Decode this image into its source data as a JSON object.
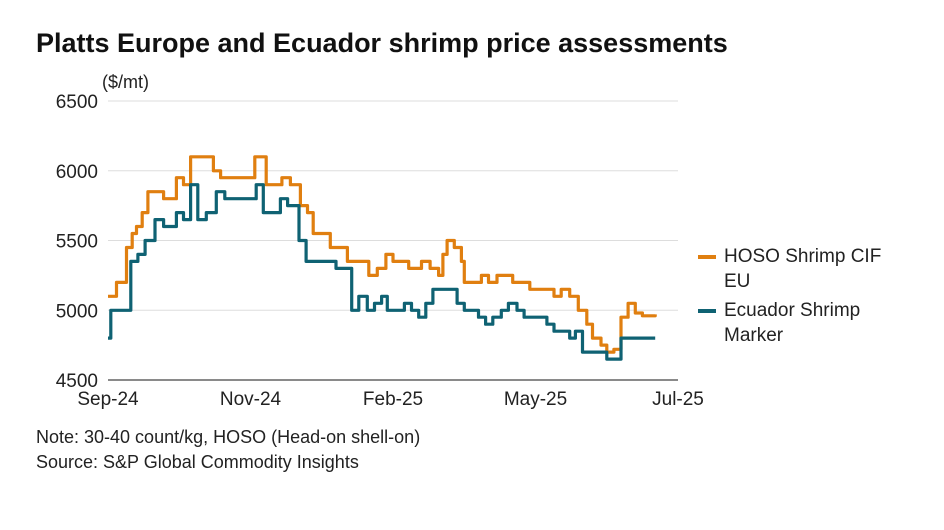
{
  "title": "Platts Europe and Ecuador shrimp price assessments",
  "note": "Note: 30-40 count/kg, HOSO (Head-on shell-on)",
  "source": "Source: S&P Global Commodity Insights",
  "colors": {
    "hoso": "#E07F10",
    "ecuador": "#0F6273",
    "grid": "#dddddd"
  },
  "chart_data": {
    "type": "line",
    "ylabel": "($/mt)",
    "ylim": [
      4500,
      6500
    ],
    "yticks": [
      4500,
      5000,
      5500,
      6000,
      6500
    ],
    "xticks": [
      "Sep-24",
      "Nov-24",
      "Feb-25",
      "May-25",
      "Jul-25"
    ],
    "xtick_positions": [
      0,
      10,
      20,
      30,
      40
    ],
    "xlim": [
      0,
      40
    ],
    "legend": "right",
    "grid": true,
    "series": [
      {
        "name": "HOSO Shrimp CIF EU",
        "color": "#E07F10",
        "points": [
          [
            0,
            5100
          ],
          [
            0.5,
            5100
          ],
          [
            0.6,
            5200
          ],
          [
            1.0,
            5200
          ],
          [
            1.3,
            5450
          ],
          [
            1.7,
            5550
          ],
          [
            2.0,
            5600
          ],
          [
            2.4,
            5700
          ],
          [
            2.8,
            5850
          ],
          [
            3.4,
            5850
          ],
          [
            3.9,
            5800
          ],
          [
            4.3,
            5800
          ],
          [
            4.8,
            5950
          ],
          [
            5.3,
            5900
          ],
          [
            5.8,
            6100
          ],
          [
            7.4,
            6000
          ],
          [
            7.9,
            5950
          ],
          [
            8.5,
            5950
          ],
          [
            9.1,
            5950
          ],
          [
            9.6,
            5950
          ],
          [
            10.3,
            6100
          ],
          [
            11.1,
            5900
          ],
          [
            11.7,
            5900
          ],
          [
            12.2,
            5950
          ],
          [
            12.8,
            5900
          ],
          [
            13.5,
            5750
          ],
          [
            14.0,
            5700
          ],
          [
            14.4,
            5550
          ],
          [
            15.0,
            5550
          ],
          [
            15.6,
            5450
          ],
          [
            16.2,
            5450
          ],
          [
            16.8,
            5350
          ],
          [
            17.4,
            5350
          ],
          [
            17.9,
            5350
          ],
          [
            18.3,
            5250
          ],
          [
            18.9,
            5300
          ],
          [
            19.5,
            5400
          ],
          [
            20.0,
            5350
          ],
          [
            20.6,
            5350
          ],
          [
            21.1,
            5300
          ],
          [
            21.6,
            5300
          ],
          [
            22.0,
            5350
          ],
          [
            22.6,
            5300
          ],
          [
            23.2,
            5250
          ],
          [
            23.5,
            5400
          ],
          [
            23.8,
            5500
          ],
          [
            24.3,
            5450
          ],
          [
            24.8,
            5350
          ],
          [
            25.0,
            5200
          ],
          [
            25.6,
            5200
          ],
          [
            26.2,
            5250
          ],
          [
            26.7,
            5200
          ],
          [
            27.3,
            5250
          ],
          [
            27.8,
            5250
          ],
          [
            28.4,
            5200
          ],
          [
            29.1,
            5200
          ],
          [
            29.6,
            5150
          ],
          [
            30.2,
            5150
          ],
          [
            30.7,
            5150
          ],
          [
            31.3,
            5100
          ],
          [
            31.8,
            5150
          ],
          [
            32.4,
            5100
          ],
          [
            33.0,
            5000
          ],
          [
            33.6,
            4900
          ],
          [
            34.0,
            4800
          ],
          [
            34.6,
            4750
          ],
          [
            35.0,
            4700
          ],
          [
            35.5,
            4720
          ],
          [
            36.0,
            4950
          ],
          [
            36.5,
            5050
          ],
          [
            37.0,
            4980
          ],
          [
            37.5,
            4960
          ],
          [
            38.0,
            4960
          ],
          [
            38.4,
            4970
          ]
        ]
      },
      {
        "name": "Ecuador Shrimp Marker",
        "color": "#0F6273",
        "points": [
          [
            0,
            4800
          ],
          [
            0.2,
            5000
          ],
          [
            0.8,
            5000
          ],
          [
            1.2,
            5000
          ],
          [
            1.6,
            5350
          ],
          [
            2.1,
            5400
          ],
          [
            2.6,
            5500
          ],
          [
            3.3,
            5650
          ],
          [
            3.9,
            5600
          ],
          [
            4.3,
            5600
          ],
          [
            4.8,
            5700
          ],
          [
            5.3,
            5650
          ],
          [
            5.8,
            5900
          ],
          [
            6.3,
            5650
          ],
          [
            6.9,
            5700
          ],
          [
            7.6,
            5850
          ],
          [
            8.2,
            5800
          ],
          [
            8.7,
            5800
          ],
          [
            9.2,
            5800
          ],
          [
            9.8,
            5800
          ],
          [
            10.4,
            5900
          ],
          [
            10.9,
            5700
          ],
          [
            11.5,
            5700
          ],
          [
            12.1,
            5800
          ],
          [
            12.6,
            5750
          ],
          [
            13.4,
            5500
          ],
          [
            13.9,
            5350
          ],
          [
            14.4,
            5350
          ],
          [
            15.0,
            5350
          ],
          [
            15.5,
            5350
          ],
          [
            16.0,
            5300
          ],
          [
            16.5,
            5300
          ],
          [
            17.1,
            5000
          ],
          [
            17.6,
            5100
          ],
          [
            18.2,
            5000
          ],
          [
            18.7,
            5050
          ],
          [
            19.2,
            5100
          ],
          [
            19.6,
            5000
          ],
          [
            20.2,
            5000
          ],
          [
            20.8,
            5050
          ],
          [
            21.3,
            5000
          ],
          [
            21.8,
            4950
          ],
          [
            22.3,
            5050
          ],
          [
            22.8,
            5150
          ],
          [
            23.4,
            5150
          ],
          [
            24.0,
            5150
          ],
          [
            24.5,
            5050
          ],
          [
            25.0,
            5000
          ],
          [
            25.5,
            5000
          ],
          [
            26.0,
            4950
          ],
          [
            26.5,
            4900
          ],
          [
            27.0,
            4950
          ],
          [
            27.6,
            5000
          ],
          [
            28.1,
            5050
          ],
          [
            28.7,
            5000
          ],
          [
            29.2,
            4950
          ],
          [
            29.7,
            4950
          ],
          [
            30.3,
            4950
          ],
          [
            30.8,
            4900
          ],
          [
            31.3,
            4850
          ],
          [
            31.9,
            4850
          ],
          [
            32.4,
            4800
          ],
          [
            32.8,
            4850
          ],
          [
            33.3,
            4700
          ],
          [
            33.9,
            4700
          ],
          [
            34.5,
            4700
          ],
          [
            35.0,
            4650
          ],
          [
            35.6,
            4650
          ],
          [
            36.0,
            4800
          ],
          [
            36.5,
            4800
          ],
          [
            37.5,
            4800
          ],
          [
            38.4,
            4800
          ]
        ]
      }
    ]
  }
}
